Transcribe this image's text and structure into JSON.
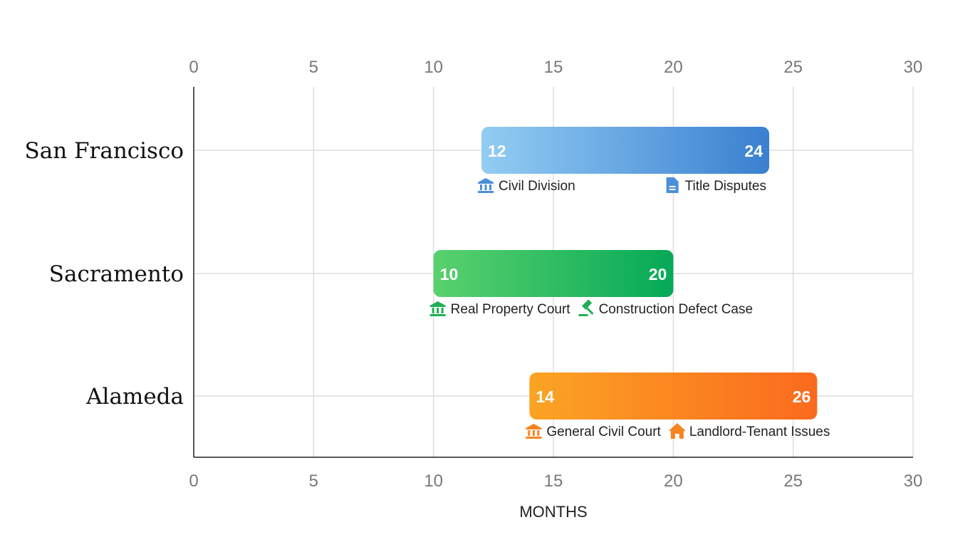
{
  "chart_data": {
    "type": "bar",
    "orientation": "horizontal-range",
    "title": "",
    "xlabel": "MONTHS",
    "ylabel": "",
    "xlim": [
      0,
      30
    ],
    "xticks": [
      0,
      5,
      10,
      15,
      20,
      25,
      30
    ],
    "grid": true,
    "categories": [
      "San Francisco",
      "Sacramento",
      "Alameda"
    ],
    "series": [
      {
        "category": "San Francisco",
        "start": 12,
        "end": 24,
        "color_start": "#93CDF3",
        "color_end": "#3A80D0",
        "start_label": {
          "text": "Civil Division",
          "icon": "bank-icon",
          "color": "#4A8FD9"
        },
        "end_label": {
          "text": "Title Disputes",
          "icon": "document-icon",
          "color": "#4A8FD9"
        }
      },
      {
        "category": "Sacramento",
        "start": 10,
        "end": 20,
        "color_start": "#5AD16E",
        "color_end": "#05A957",
        "start_label": {
          "text": "Real Property Court",
          "icon": "bank-icon",
          "color": "#1FAF55"
        },
        "end_label": {
          "text": "Construction Defect Case",
          "icon": "gavel-icon",
          "color": "#1FAF55"
        }
      },
      {
        "category": "Alameda",
        "start": 14,
        "end": 26,
        "color_start": "#FBA424",
        "color_end": "#FB6A1E",
        "start_label": {
          "text": "General Civil Court",
          "icon": "bank-icon",
          "color": "#F6841F"
        },
        "end_label": {
          "text": "Landlord-Tenant Issues",
          "icon": "house-icon",
          "color": "#F6841F"
        }
      }
    ]
  }
}
